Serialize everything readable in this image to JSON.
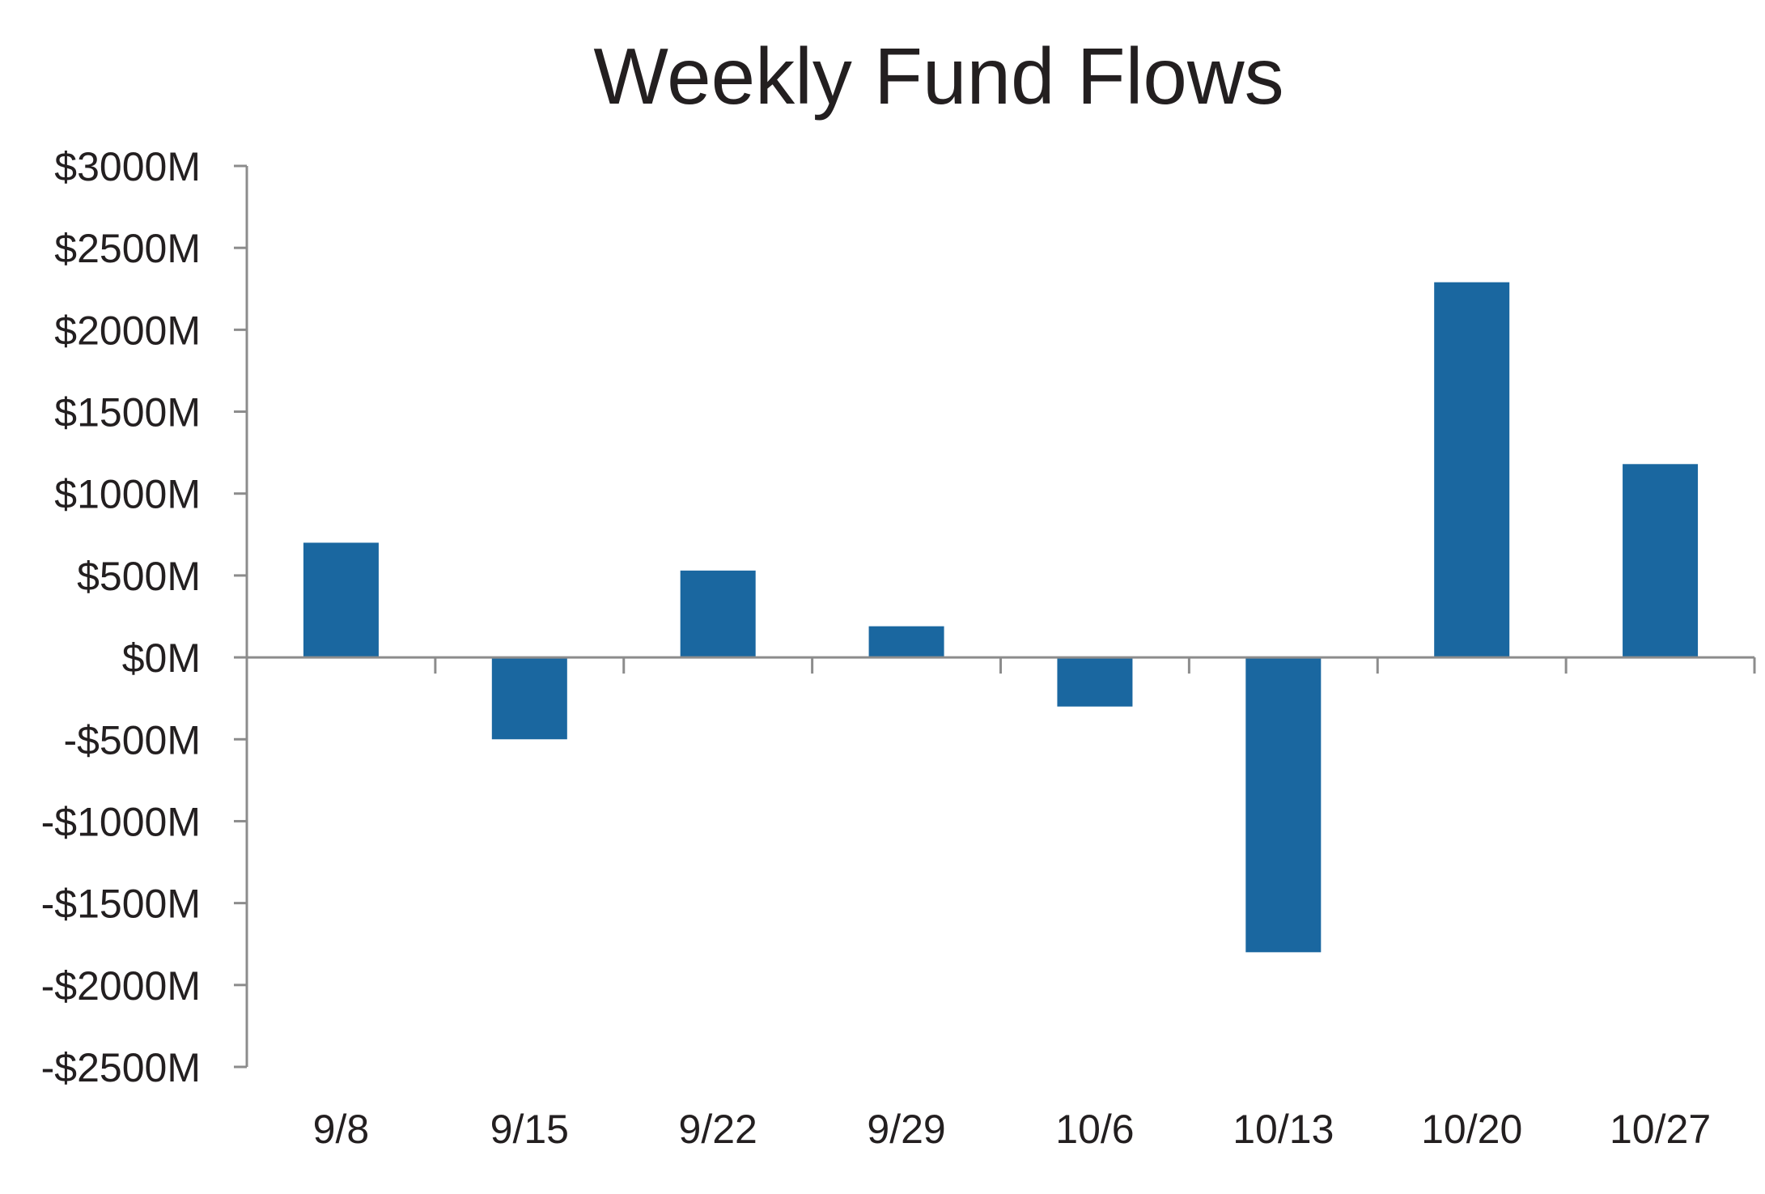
{
  "chart_data": {
    "type": "bar",
    "title": "Weekly Fund Flows",
    "xlabel": "",
    "ylabel": "",
    "categories": [
      "9/8",
      "9/15",
      "9/22",
      "9/29",
      "10/6",
      "10/13",
      "10/20",
      "10/27"
    ],
    "values": [
      700,
      -500,
      530,
      190,
      -300,
      -1800,
      2290,
      1180
    ],
    "ylim": [
      -2500,
      3000
    ],
    "y_ticks": [
      3000,
      2500,
      2000,
      1500,
      1000,
      500,
      0,
      -500,
      -1000,
      -1500,
      -2000,
      -2500
    ],
    "y_tick_labels": [
      "$3000M",
      "$2500M",
      "$2000M",
      "$1500M",
      "$1000M",
      "$500M",
      "$0M",
      "-$500M",
      "-$1000M",
      "-$1500M",
      "-$2000M",
      "-$2500M"
    ],
    "grid": false,
    "legend": "none",
    "bar_color": "#1a67a0",
    "axis_color": "#8c8c8c"
  }
}
